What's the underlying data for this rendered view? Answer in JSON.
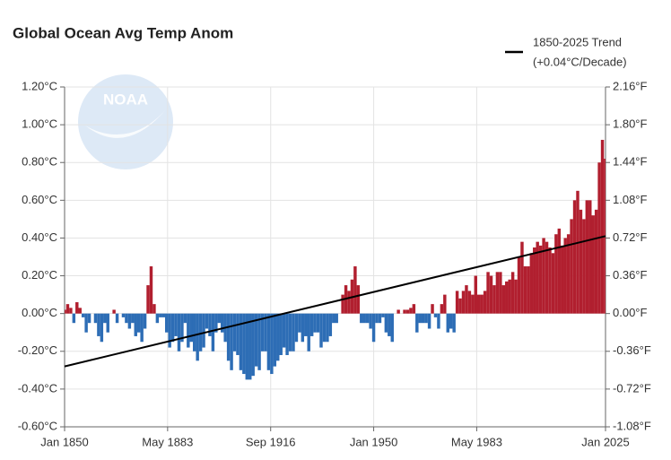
{
  "chart_data": {
    "type": "bar",
    "title": "Global Ocean Avg Temp Anom",
    "watermark": "NOAA",
    "x": [
      1850,
      1851,
      1852,
      1853,
      1854,
      1855,
      1856,
      1857,
      1858,
      1859,
      1860,
      1861,
      1862,
      1863,
      1864,
      1865,
      1866,
      1867,
      1868,
      1869,
      1870,
      1871,
      1872,
      1873,
      1874,
      1875,
      1876,
      1877,
      1878,
      1879,
      1880,
      1881,
      1882,
      1883,
      1884,
      1885,
      1886,
      1887,
      1888,
      1889,
      1890,
      1891,
      1892,
      1893,
      1894,
      1895,
      1896,
      1897,
      1898,
      1899,
      1900,
      1901,
      1902,
      1903,
      1904,
      1905,
      1906,
      1907,
      1908,
      1909,
      1910,
      1911,
      1912,
      1913,
      1914,
      1915,
      1916,
      1917,
      1918,
      1919,
      1920,
      1921,
      1922,
      1923,
      1924,
      1925,
      1926,
      1927,
      1928,
      1929,
      1930,
      1931,
      1932,
      1933,
      1934,
      1935,
      1936,
      1937,
      1938,
      1939,
      1940,
      1941,
      1942,
      1943,
      1944,
      1945,
      1946,
      1947,
      1948,
      1949,
      1950,
      1951,
      1952,
      1953,
      1954,
      1955,
      1956,
      1957,
      1958,
      1959,
      1960,
      1961,
      1962,
      1963,
      1964,
      1965,
      1966,
      1967,
      1968,
      1969,
      1970,
      1971,
      1972,
      1973,
      1974,
      1975,
      1976,
      1977,
      1978,
      1979,
      1980,
      1981,
      1982,
      1983,
      1984,
      1985,
      1986,
      1987,
      1988,
      1989,
      1990,
      1991,
      1992,
      1993,
      1994,
      1995,
      1996,
      1997,
      1998,
      1999,
      2000,
      2001,
      2002,
      2003,
      2004,
      2005,
      2006,
      2007,
      2008,
      2009,
      2010,
      2011,
      2012,
      2013,
      2014,
      2015,
      2016,
      2017,
      2018,
      2019,
      2020,
      2021,
      2022,
      2023,
      2024,
      2025
    ],
    "values": [
      0.02,
      0.05,
      0.03,
      -0.05,
      0.06,
      0.03,
      -0.02,
      -0.1,
      -0.05,
      0.0,
      -0.05,
      -0.12,
      -0.15,
      -0.05,
      -0.1,
      0.0,
      0.02,
      -0.05,
      0.0,
      -0.02,
      -0.05,
      -0.08,
      -0.05,
      -0.12,
      -0.1,
      -0.15,
      -0.08,
      0.15,
      0.25,
      0.05,
      -0.05,
      -0.02,
      -0.02,
      -0.1,
      -0.18,
      -0.15,
      -0.12,
      -0.2,
      -0.15,
      -0.05,
      -0.18,
      -0.15,
      -0.2,
      -0.25,
      -0.2,
      -0.18,
      -0.08,
      -0.12,
      -0.2,
      -0.1,
      -0.05,
      -0.1,
      -0.15,
      -0.25,
      -0.3,
      -0.2,
      -0.22,
      -0.3,
      -0.32,
      -0.35,
      -0.35,
      -0.33,
      -0.28,
      -0.3,
      -0.2,
      -0.2,
      -0.3,
      -0.32,
      -0.28,
      -0.25,
      -0.22,
      -0.18,
      -0.22,
      -0.2,
      -0.2,
      -0.15,
      -0.1,
      -0.15,
      -0.12,
      -0.2,
      -0.12,
      -0.1,
      -0.1,
      -0.18,
      -0.15,
      -0.15,
      -0.12,
      -0.05,
      -0.05,
      0.0,
      0.1,
      0.15,
      0.12,
      0.18,
      0.25,
      0.15,
      -0.05,
      -0.05,
      -0.05,
      -0.08,
      -0.15,
      -0.05,
      -0.05,
      -0.02,
      -0.1,
      -0.12,
      -0.15,
      0.0,
      0.02,
      0.0,
      0.02,
      0.02,
      0.03,
      0.05,
      -0.1,
      -0.05,
      -0.05,
      -0.05,
      -0.08,
      0.05,
      -0.02,
      -0.08,
      0.05,
      0.1,
      -0.1,
      -0.08,
      -0.1,
      0.12,
      0.08,
      0.12,
      0.15,
      0.12,
      0.1,
      0.2,
      0.1,
      0.1,
      0.12,
      0.22,
      0.2,
      0.15,
      0.22,
      0.22,
      0.15,
      0.17,
      0.18,
      0.22,
      0.18,
      0.3,
      0.38,
      0.25,
      0.25,
      0.32,
      0.35,
      0.38,
      0.36,
      0.4,
      0.38,
      0.35,
      0.32,
      0.42,
      0.45,
      0.36,
      0.4,
      0.42,
      0.5,
      0.6,
      0.65,
      0.55,
      0.5,
      0.6,
      0.6,
      0.52,
      0.55,
      0.8,
      0.92,
      0.82
    ],
    "colors": {
      "positive": "#b11f2f",
      "negative": "#2d6db5"
    },
    "trend": {
      "name": "1850-2025 Trend",
      "note": "(+0.04°C/Decade)",
      "color": "#000000",
      "x": [
        1850,
        2025
      ],
      "values": [
        -0.28,
        0.41
      ]
    },
    "xlim": [
      1850,
      2025
    ],
    "xticks": [
      {
        "value": 1850,
        "label": "Jan 1850"
      },
      {
        "value": 1883.33,
        "label": "May 1883"
      },
      {
        "value": 1916.67,
        "label": "Sep 1916"
      },
      {
        "value": 1950,
        "label": "Jan 1950"
      },
      {
        "value": 1983.33,
        "label": "May 1983"
      },
      {
        "value": 2025,
        "label": "Jan 2025"
      }
    ],
    "ylim": [
      -0.6,
      1.2
    ],
    "yticks": [
      {
        "value": 1.2,
        "label": "1.20°C"
      },
      {
        "value": 1.0,
        "label": "1.00°C"
      },
      {
        "value": 0.8,
        "label": "0.80°C"
      },
      {
        "value": 0.6,
        "label": "0.60°C"
      },
      {
        "value": 0.4,
        "label": "0.40°C"
      },
      {
        "value": 0.2,
        "label": "0.20°C"
      },
      {
        "value": 0,
        "label": "0.00°C"
      },
      {
        "value": -0.2,
        "label": "-0.20°C"
      },
      {
        "value": -0.4,
        "label": "-0.40°C"
      },
      {
        "value": -0.6,
        "label": "-0.60°C"
      }
    ],
    "y2lim": [
      -1.08,
      2.16
    ],
    "y2ticks": [
      {
        "value": 2.16,
        "label": "2.16°F"
      },
      {
        "value": 1.8,
        "label": "1.80°F"
      },
      {
        "value": 1.44,
        "label": "1.44°F"
      },
      {
        "value": 1.08,
        "label": "1.08°F"
      },
      {
        "value": 0.72,
        "label": "0.72°F"
      },
      {
        "value": 0.36,
        "label": "0.36°F"
      },
      {
        "value": 0,
        "label": "0.00°F"
      },
      {
        "value": -0.36,
        "label": "-0.36°F"
      },
      {
        "value": -0.72,
        "label": "-0.72°F"
      },
      {
        "value": -1.08,
        "label": "-1.08°F"
      }
    ],
    "grid": true
  }
}
